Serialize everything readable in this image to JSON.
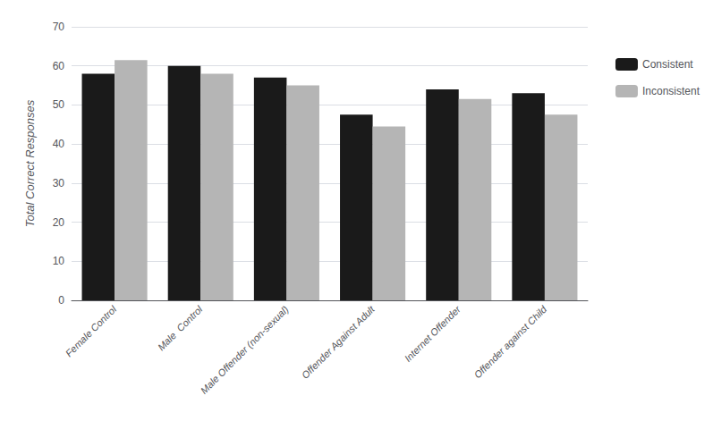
{
  "chart_data": {
    "type": "bar",
    "categories": [
      "Female Control",
      "Male  Control",
      "Male Offender (non-sexual)",
      "Offender Against Adult",
      "Internet Offender",
      "Offender against Child"
    ],
    "series": [
      {
        "name": "Consistent",
        "color": "#1a1a1a",
        "values": [
          58,
          60,
          57,
          47.5,
          54,
          53
        ]
      },
      {
        "name": "Inconsistent",
        "color": "#b5b5b5",
        "values": [
          61.5,
          58,
          55,
          44.5,
          51.5,
          47.5
        ]
      }
    ],
    "ylabel": "Total Correct Responses",
    "ylim": [
      0,
      70
    ],
    "yticks": [
      0,
      10,
      20,
      30,
      40,
      50,
      60,
      70
    ],
    "grid": true,
    "legend": "right"
  }
}
